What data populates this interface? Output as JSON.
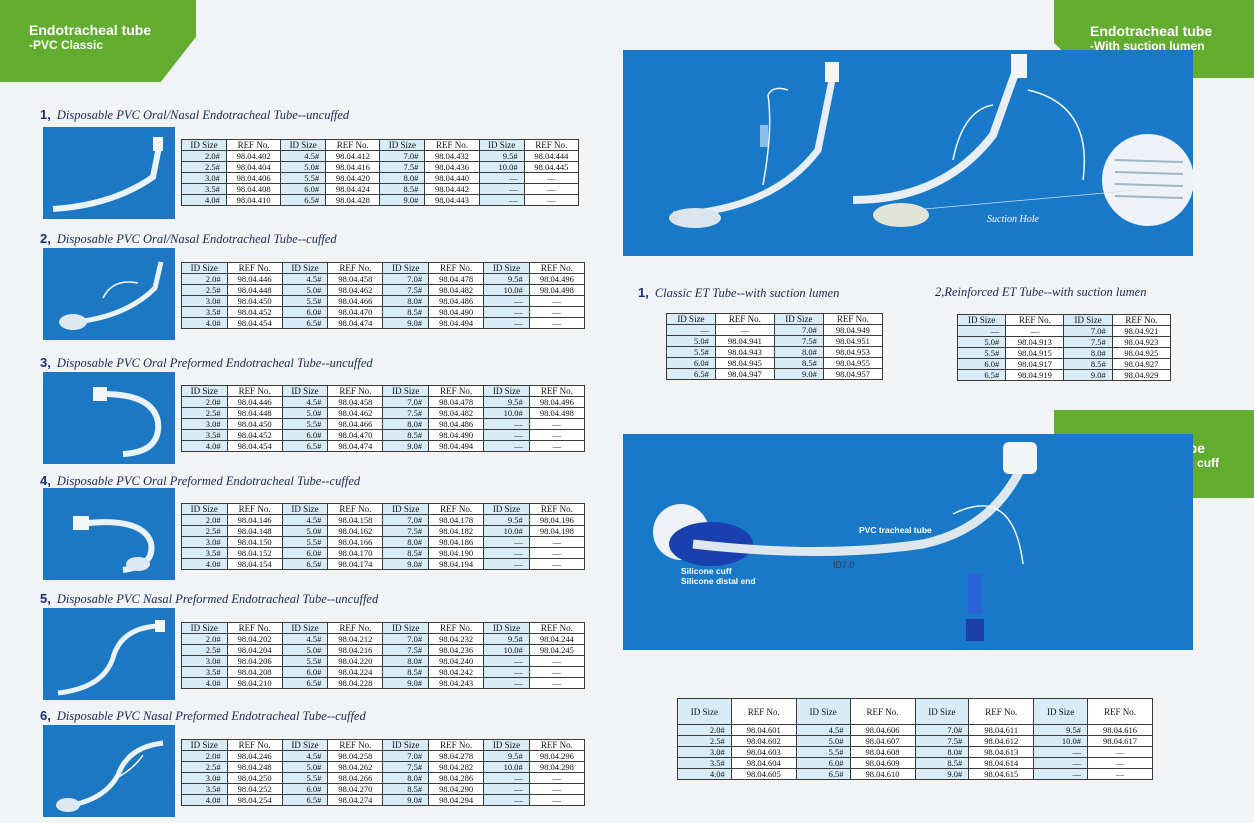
{
  "badges": {
    "left": {
      "line1": "Endotracheal tube",
      "line2": "-PVC Classic"
    },
    "right_top": {
      "line1": "Endotracheal tube",
      "line2": "-With suction lumen"
    },
    "right_mid": {
      "line1": "Endotracheal Tube",
      "line2": "-PVC tube+ Silicone cuff"
    }
  },
  "headers": [
    "ID Size",
    "REF No.",
    "ID Size",
    "REF No.",
    "ID Size",
    "REF No.",
    "ID Size",
    "REF No."
  ],
  "left_sections": [
    {
      "num": "1,",
      "title": "Disposable PVC Oral/Nasal Endotracheal Tube--uncuffed",
      "rows": [
        [
          "2.0#",
          "98.04.402",
          "4.5#",
          "98.04.412",
          "7.0#",
          "98.04.432",
          "9.5#",
          "98.04.444"
        ],
        [
          "2.5#",
          "98.04.404",
          "5.0#",
          "98.04.416",
          "7.5#",
          "98.04.436",
          "10.0#",
          "98.04.445"
        ],
        [
          "3.0#",
          "98.04.406",
          "5.5#",
          "98.04.420",
          "8.0#",
          "98.04.440",
          "—",
          "—"
        ],
        [
          "3.5#",
          "98.04.408",
          "6.0#",
          "98.04.424",
          "8.5#",
          "98.04.442",
          "—",
          "—"
        ],
        [
          "4.0#",
          "98.04.410",
          "6.5#",
          "98.04.428",
          "9.0#",
          "98.04.443",
          "—",
          "—"
        ]
      ]
    },
    {
      "num": "2,",
      "title": "Disposable PVC Oral/Nasal Endotracheal Tube--cuffed",
      "rows": [
        [
          "2.0#",
          "98.04.446",
          "4.5#",
          "98.04.458",
          "7.0#",
          "98.04.478",
          "9.5#",
          "98.04.496"
        ],
        [
          "2.5#",
          "98.04.448",
          "5.0#",
          "98.04.462",
          "7.5#",
          "98.04.482",
          "10.0#",
          "98.04.498"
        ],
        [
          "3.0#",
          "98.04.450",
          "5.5#",
          "98.04.466",
          "8.0#",
          "98.04.486",
          "—",
          "—"
        ],
        [
          "3.5#",
          "98.04.452",
          "6.0#",
          "98.04.470",
          "8.5#",
          "98.04.490",
          "—",
          "—"
        ],
        [
          "4.0#",
          "98.04.454",
          "6.5#",
          "98.04.474",
          "9.0#",
          "98.04.494",
          "—",
          "—"
        ]
      ]
    },
    {
      "num": "3,",
      "title": "Disposable PVC Oral Preformed Endotracheal Tube--uncuffed",
      "rows": [
        [
          "2.0#",
          "98.04.446",
          "4.5#",
          "98.04.458",
          "7.0#",
          "98.04.478",
          "9.5#",
          "98.04.496"
        ],
        [
          "2.5#",
          "98.04.448",
          "5.0#",
          "98.04.462",
          "7.5#",
          "98.04.482",
          "10.0#",
          "98.04.498"
        ],
        [
          "3.0#",
          "98.04.450",
          "5.5#",
          "98.04.466",
          "8.0#",
          "98.04.486",
          "—",
          "—"
        ],
        [
          "3.5#",
          "98.04.452",
          "6.0#",
          "98.04.470",
          "8.5#",
          "98.04.490",
          "—",
          "—"
        ],
        [
          "4.0#",
          "98.04.454",
          "6.5#",
          "98.04.474",
          "9.0#",
          "98.04.494",
          "—",
          "—"
        ]
      ]
    },
    {
      "num": "4,",
      "title": "Disposable PVC Oral Preformed Endotracheal Tube--cuffed",
      "rows": [
        [
          "2.0#",
          "98.04.146",
          "4.5#",
          "98.04.158",
          "7.0#",
          "98.04.178",
          "9.5#",
          "98.04.196"
        ],
        [
          "2.5#",
          "98.04.148",
          "5.0#",
          "98.04.162",
          "7.5#",
          "98.04.182",
          "10.0#",
          "98.04.198"
        ],
        [
          "3.0#",
          "98.04.150",
          "5.5#",
          "98.04.166",
          "8.0#",
          "98.04.186",
          "—",
          "—"
        ],
        [
          "3.5#",
          "98.04.152",
          "6.0#",
          "98.04.170",
          "8.5#",
          "98.04.190",
          "—",
          "—"
        ],
        [
          "4.0#",
          "98.04.154",
          "6.5#",
          "98.04.174",
          "9.0#",
          "98.04.194",
          "—",
          "—"
        ]
      ]
    },
    {
      "num": "5,",
      "title": "Disposable PVC Nasal Preformed Endotracheal Tube--uncuffed",
      "rows": [
        [
          "2.0#",
          "98.04.202",
          "4.5#",
          "98.04.212",
          "7.0#",
          "98.04.232",
          "9.5#",
          "98.04.244"
        ],
        [
          "2.5#",
          "98.04.204",
          "5.0#",
          "98.04.216",
          "7.5#",
          "98.04.236",
          "10.0#",
          "98.04.245"
        ],
        [
          "3.0#",
          "98.04.206",
          "5.5#",
          "98.04.220",
          "8.0#",
          "98.04.240",
          "—",
          "—"
        ],
        [
          "3.5#",
          "98.04.208",
          "6.0#",
          "98.04.224",
          "8.5#",
          "98.04.242",
          "—",
          "—"
        ],
        [
          "4.0#",
          "98.04.210",
          "6.5#",
          "98.04.228",
          "9.0#",
          "98.04.243",
          "—",
          "—"
        ]
      ]
    },
    {
      "num": "6,",
      "title": "Disposable PVC Nasal Preformed Endotracheal Tube--cuffed",
      "rows": [
        [
          "2.0#",
          "98.04.246",
          "4.5#",
          "98.04.258",
          "7.0#",
          "98.04.278",
          "9.5#",
          "98.04.296"
        ],
        [
          "2.5#",
          "98.04.248",
          "5.0#",
          "98.04.262",
          "7.5#",
          "98.04.282",
          "10.0#",
          "98.04.298"
        ],
        [
          "3.0#",
          "98.04.250",
          "5.5#",
          "98.04.266",
          "8.0#",
          "98.04.286",
          "—",
          "—"
        ],
        [
          "3.5#",
          "98.04.252",
          "6.0#",
          "98.04.270",
          "8.5#",
          "98.04.290",
          "—",
          "—"
        ],
        [
          "4.0#",
          "98.04.254",
          "6.5#",
          "98.04.274",
          "9.0#",
          "98.04.294",
          "—",
          "—"
        ]
      ]
    }
  ],
  "suction": {
    "photo_label": "Suction Hole",
    "headers": [
      "ID Size",
      "REF No.",
      "ID Size",
      "REF No."
    ],
    "classic": {
      "num": "1,",
      "title": "Classic ET Tube--with suction lumen",
      "rows": [
        [
          "—",
          "—",
          "7.0#",
          "98.04.949"
        ],
        [
          "5.0#",
          "98.04.941",
          "7.5#",
          "98.04.951"
        ],
        [
          "5.5#",
          "98.04.943",
          "8.0#",
          "98.04.953"
        ],
        [
          "6.0#",
          "98.04.945",
          "8.5#",
          "98.04.955"
        ],
        [
          "6.5#",
          "98.04.947",
          "9.0#",
          "98.04.957"
        ]
      ]
    },
    "reinforced": {
      "num": "2,",
      "title": "Reinforced ET Tube--with suction lumen",
      "rows": [
        [
          "—",
          "—",
          "7.0#",
          "98.04.921"
        ],
        [
          "5.0#",
          "98.04.913",
          "7.5#",
          "98.04.923"
        ],
        [
          "5.5#",
          "98.04.915",
          "8.0#",
          "98.04.925"
        ],
        [
          "6.0#",
          "98.04.917",
          "8.5#",
          "98.04.927"
        ],
        [
          "6.5#",
          "98.04.919",
          "9.0#",
          "98.04.929"
        ]
      ]
    }
  },
  "silicone": {
    "label_tube": "PVC tracheal tube",
    "label_cuff": "Silicone cuff",
    "label_end": "Silicone distal end",
    "tube_marking": "ID7.0",
    "rows": [
      [
        "2.0#",
        "98.04.601",
        "4.5#",
        "98.04.606",
        "7.0#",
        "98.04.611",
        "9.5#",
        "98.04.616"
      ],
      [
        "2.5#",
        "98.04.602",
        "5.0#",
        "98.04.607",
        "7.5#",
        "98.04.612",
        "10.0#",
        "98.04.617"
      ],
      [
        "3.0#",
        "98.04.603",
        "5.5#",
        "98.04.608",
        "8.0#",
        "98.04.613",
        "—",
        "—"
      ],
      [
        "3.5#",
        "98.04.604",
        "6.0#",
        "98.04.609",
        "8.5#",
        "98.04.614",
        "—",
        "—"
      ],
      [
        "4.0#",
        "98.04.605",
        "6.5#",
        "98.04.610",
        "9.0#",
        "98.04.615",
        "—",
        "—"
      ]
    ]
  }
}
